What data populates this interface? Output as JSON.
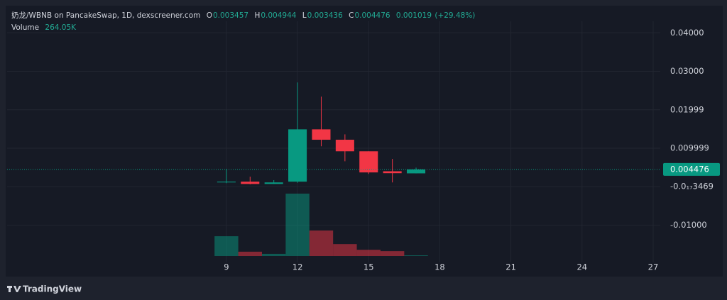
{
  "chart_data": {
    "type": "candlestick",
    "title": "奶龙/WBNB on PancakeSwap, 1D, dexscreener.com",
    "ohlc_letters": [
      "O",
      "H",
      "L",
      "C"
    ],
    "change": 0.001019,
    "change_label": "(+29.48%)",
    "x": [
      9,
      10,
      11,
      12,
      13,
      14,
      15,
      16,
      17
    ],
    "open": [
      0.0011,
      0.0013,
      0.0007,
      0.0013,
      0.0149,
      0.0122,
      0.0092,
      0.004,
      0.003457
    ],
    "high": [
      0.0046,
      0.0026,
      0.0017,
      0.0271,
      0.0234,
      0.0136,
      0.0092,
      0.0072,
      0.004944
    ],
    "low": [
      0.0009,
      0.0006,
      0.0007,
      0.001,
      0.0105,
      0.0066,
      0.0033,
      0.0011,
      0.003436
    ],
    "close": [
      0.0013,
      0.0007,
      0.0011,
      0.0149,
      0.0122,
      0.0092,
      0.0037,
      0.0035,
      0.004476
    ],
    "volume": {
      "name": "Volume",
      "values": [
        7300000,
        1600000,
        800000,
        23000000,
        9400000,
        4400000,
        2300000,
        1800000,
        264050
      ],
      "last_label": "264.05K"
    },
    "up_color": "#089981",
    "down_color": "#f23645",
    "xlim": [
      -0.25,
      27.3
    ],
    "xticks": [
      9,
      12,
      15,
      18,
      21,
      24,
      27
    ],
    "ylim": [
      -0.0197,
      0.043
    ],
    "yticks": [
      {
        "value": 0.04,
        "label": "0.04000"
      },
      {
        "value": 0.03,
        "label": "0.03000"
      },
      0.01999,
      0.009999,
      {
        "value": -3.469e-18,
        "label": "-0.0₁₇3469"
      },
      {
        "value": -0.01,
        "label": "-0.01000"
      }
    ],
    "grid": true,
    "brand": "TradingView"
  }
}
